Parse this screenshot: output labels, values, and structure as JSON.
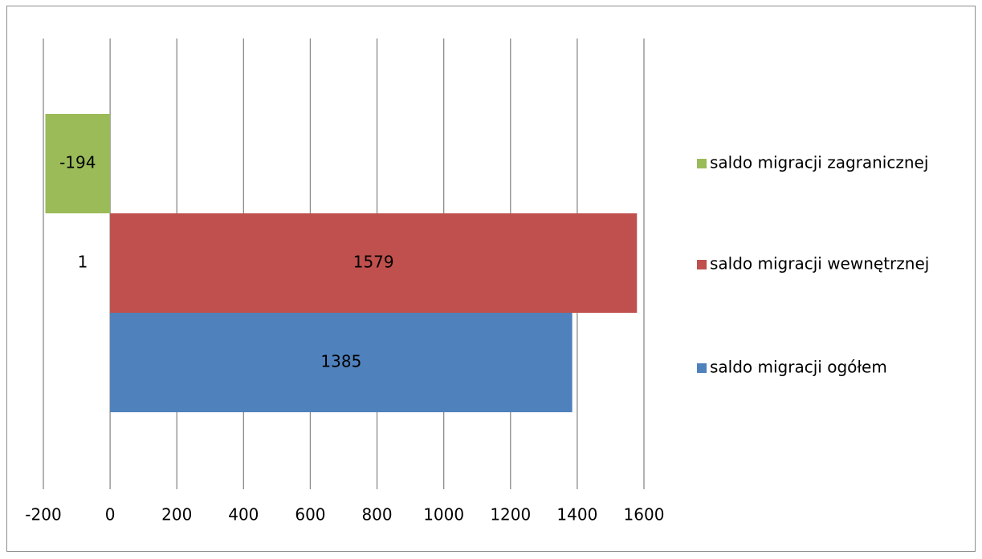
{
  "chart_data": {
    "type": "bar",
    "orientation": "horizontal",
    "categories": [
      "1"
    ],
    "series": [
      {
        "name": "saldo migracji ogółem",
        "values": [
          1385
        ],
        "color": "#4f81bd"
      },
      {
        "name": "saldo migracji wewnętrznej",
        "values": [
          1579
        ],
        "color": "#c0504d"
      },
      {
        "name": "saldo migracji zagranicznej",
        "values": [
          -194
        ],
        "color": "#9bbb59"
      }
    ],
    "xlim": [
      -200,
      1600
    ],
    "x_ticks": [
      -200,
      0,
      200,
      400,
      600,
      800,
      1000,
      1200,
      1400,
      1600
    ],
    "grid": "vertical",
    "legend_position": "right",
    "title": "",
    "xlabel": "",
    "ylabel": ""
  }
}
